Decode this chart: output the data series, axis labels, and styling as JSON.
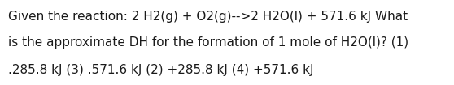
{
  "lines": [
    "Given the reaction: 2 H2(g) + O2(g)-->2 H2O(l) + 571.6 kJ What",
    "is the approximate DH for the formation of 1 mole of H2O(l)? (1)",
    ".285.8 kJ (3) .571.6 kJ (2) +285.8 kJ (4) +571.6 kJ"
  ],
  "background_color": "#ffffff",
  "text_color": "#1a1a1a",
  "font_size": 11.0,
  "font_family": "DejaVu Sans",
  "font_weight": "normal"
}
